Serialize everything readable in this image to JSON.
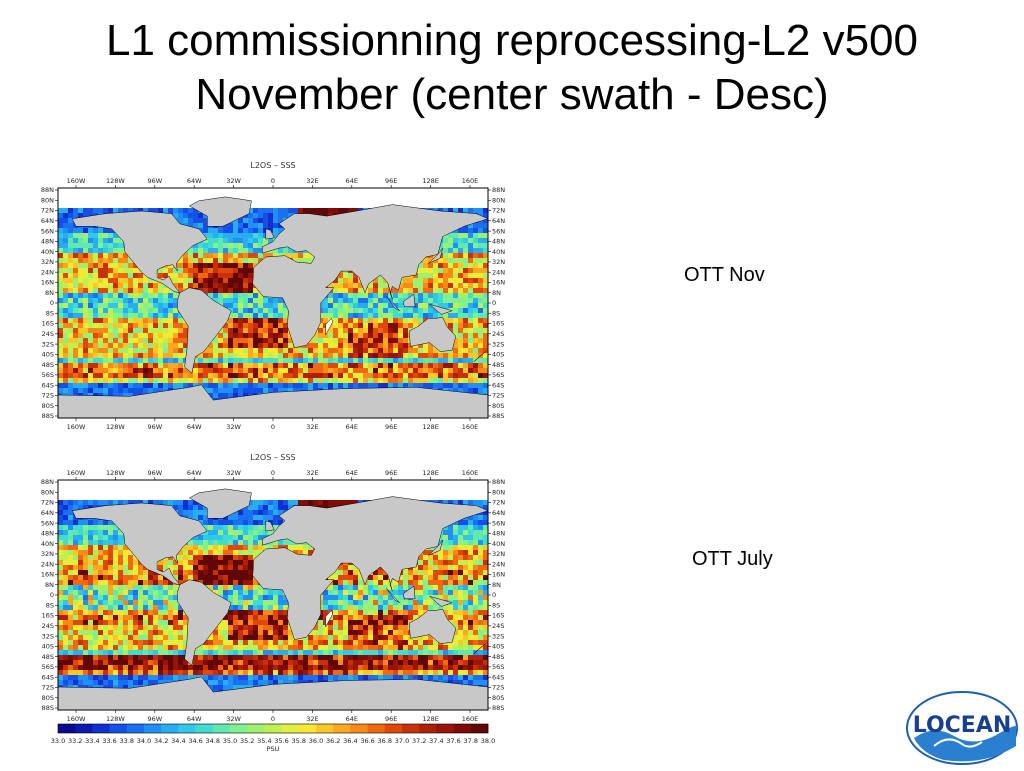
{
  "slide": {
    "title_line1": "L1 commissionning reprocessing-L2 v500",
    "title_line2": "November (center swath - Desc)"
  },
  "maps": [
    {
      "map_title": "L2OS – SSS",
      "side_label": "OTT Nov"
    },
    {
      "map_title": "L2OS – SSS",
      "side_label": "OTT July"
    }
  ],
  "axes": {
    "lon_ticks": [
      "160W",
      "128W",
      "96W",
      "64W",
      "32W",
      "0",
      "32E",
      "64E",
      "96E",
      "128E",
      "160E"
    ],
    "lat_ticks": [
      "88N",
      "80N",
      "72N",
      "64N",
      "56N",
      "48N",
      "40N",
      "32N",
      "24N",
      "16N",
      "8N",
      "0",
      "8S",
      "16S",
      "24S",
      "32S",
      "40S",
      "48S",
      "56S",
      "64S",
      "72S",
      "80S",
      "88S"
    ]
  },
  "colorbar": {
    "labels": [
      "33.0",
      "33.2",
      "33.4",
      "33.6",
      "33.8",
      "34.0",
      "34.2",
      "34.4",
      "34.6",
      "34.8",
      "35.0",
      "35.2",
      "35.4",
      "35.6",
      "35.8",
      "36.0",
      "36.2",
      "36.4",
      "36.6",
      "36.8",
      "37.0",
      "37.2",
      "37.4",
      "37.6",
      "37.8",
      "38.0"
    ],
    "unit": "PSU",
    "colors": [
      "#0a0a8c",
      "#0c1ab0",
      "#1030d0",
      "#1450e8",
      "#1a70f0",
      "#2090f5",
      "#28aef0",
      "#30c8e8",
      "#40dcd0",
      "#60e8b0",
      "#80f090",
      "#a0f070",
      "#c0f050",
      "#e0f040",
      "#f8e830",
      "#fcc828",
      "#fca820",
      "#f88818",
      "#f06810",
      "#e04808",
      "#c83008",
      "#b02008",
      "#981408",
      "#800c08",
      "#600808"
    ]
  },
  "logo": {
    "text": "LOCEAN"
  },
  "colors": {
    "land": "#c8c8c8",
    "ice": "#ffffff",
    "frame": "#000000"
  }
}
